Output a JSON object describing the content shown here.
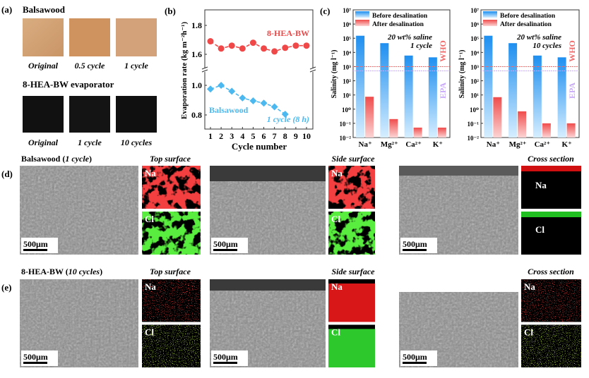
{
  "panel_a": {
    "label": "(a)",
    "row1_title": "Balsawood",
    "row1_captions": [
      "Original",
      "0.5 cycle",
      "1 cycle"
    ],
    "row2_title": "8-HEA-BW evaporator",
    "row2_captions": [
      "Original",
      "1 cycle",
      "10 cycles"
    ]
  },
  "chart_data": [
    {
      "panel": "(b)",
      "type": "line",
      "xlabel": "Cycle number",
      "ylabel": "Evaporation rate (kg m⁻²h⁻¹)",
      "x_ticks": [
        1,
        2,
        3,
        4,
        5,
        6,
        7,
        8,
        9,
        10
      ],
      "y_ticks_upper": [
        "1.6",
        "1.8"
      ],
      "y_ticks_lower": [
        "0.8",
        "1.0"
      ],
      "ylim_upper": [
        1.5,
        1.9
      ],
      "ylim_lower": [
        0.72,
        1.08
      ],
      "axis_break": true,
      "series": [
        {
          "name": "8-HEA-BW",
          "color": "#f04848",
          "marker": "circle",
          "x": [
            1,
            2,
            3,
            4,
            5,
            6,
            7,
            8,
            9,
            10
          ],
          "values": [
            1.69,
            1.64,
            1.66,
            1.64,
            1.68,
            1.64,
            1.62,
            1.645,
            1.66,
            1.66
          ]
        },
        {
          "name": "Balsawood",
          "color": "#4cb8f0",
          "marker": "diamond",
          "x": [
            1,
            2,
            3,
            4,
            5,
            6,
            7,
            8
          ],
          "values": [
            0.975,
            1.0,
            0.96,
            0.915,
            0.895,
            0.88,
            0.855,
            0.805
          ]
        }
      ],
      "annotation": "1 cycle (8 h)"
    },
    {
      "panel": "(c)",
      "type": "bar",
      "scale": "log",
      "ylabel": "Salinity (mg l⁻¹)",
      "ylim": [
        0.01,
        10000000
      ],
      "y_ticks": [
        "10⁻²",
        "10⁻¹",
        "10⁰",
        "10¹",
        "10²",
        "10³",
        "10⁴",
        "10⁵",
        "10⁶",
        "10⁷"
      ],
      "categories": [
        "Na⁺",
        "Mg²⁺",
        "Ca²⁺",
        "K⁺"
      ],
      "series": [
        {
          "name": "Before desalination",
          "color": "#1e90f0",
          "values": [
            150000,
            45000,
            6000,
            4500
          ]
        },
        {
          "name": "After desalination",
          "color": "#f05a5a",
          "values": [
            7.5,
            0.2,
            0.05,
            0.05
          ]
        }
      ],
      "reference_lines": [
        {
          "label": "WHO",
          "value": 1000,
          "color": "#f06a6a"
        },
        {
          "label": "EPA",
          "value": 500,
          "color": "#c8a8f8"
        }
      ],
      "annotation": [
        "20 wt% saline",
        "1 cycle"
      ],
      "legend": "top-left"
    },
    {
      "type": "bar",
      "scale": "log",
      "ylabel": "Salinity (mg l⁻¹)",
      "ylim": [
        0.01,
        10000000
      ],
      "y_ticks": [
        "10⁻²",
        "10⁻¹",
        "10⁰",
        "10¹",
        "10²",
        "10³",
        "10⁴",
        "10⁵",
        "10⁶",
        "10⁷"
      ],
      "categories": [
        "Na⁺",
        "Mg²⁺",
        "Ca²⁺",
        "K⁺"
      ],
      "series": [
        {
          "name": "Before desalination",
          "color": "#1e90f0",
          "values": [
            150000,
            45000,
            6000,
            4500
          ]
        },
        {
          "name": "After desalination",
          "color": "#f05a5a",
          "values": [
            7,
            0.7,
            0.1,
            0.1
          ]
        }
      ],
      "reference_lines": [
        {
          "label": "WHO",
          "value": 1000,
          "color": "#f06a6a"
        },
        {
          "label": "EPA",
          "value": 500,
          "color": "#c8a8f8"
        }
      ],
      "annotation": [
        "20 wt% saline",
        "10 cycles"
      ],
      "legend": "top-left"
    }
  ],
  "panel_d": {
    "label": "(d)",
    "title_main": "Balsawood (",
    "title_italic": "1 cycle",
    "title_end": ")",
    "sections": [
      "Top surface",
      "Side surface",
      "Cross section"
    ],
    "element_labels": [
      "Na",
      "Cl"
    ],
    "scale_bar": "500μm"
  },
  "panel_e": {
    "label": "(e)",
    "title_main": "8-HEA-BW (",
    "title_italic": "10 cycles",
    "title_end": ")",
    "sections": [
      "Top surface",
      "Side surface",
      "Cross section"
    ],
    "element_labels": [
      "Na",
      "Cl"
    ],
    "scale_bar": "500μm"
  }
}
